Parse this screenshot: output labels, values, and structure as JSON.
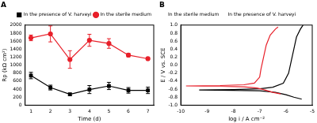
{
  "chart_data": [
    {
      "type": "line",
      "title": "A",
      "x_label": "Time (d)",
      "y_label": "Rp (kΩ cm²)",
      "xlim": [
        0.7,
        7.3
      ],
      "xticks": [
        1,
        2,
        3,
        4,
        5,
        6,
        7
      ],
      "ylim": [
        0,
        2000
      ],
      "yticks": [
        0,
        200,
        400,
        600,
        800,
        1000,
        1200,
        1400,
        1600,
        1800,
        2000
      ],
      "grid": false,
      "legend": "top-right",
      "series": [
        {
          "name": "In the presence of V. harveyi",
          "color": "#000000",
          "marker": "square",
          "line_style": "solid",
          "x": [
            1,
            2,
            3,
            4,
            5,
            6,
            7
          ],
          "values": [
            740,
            440,
            270,
            390,
            480,
            370,
            370
          ],
          "errors": [
            80,
            60,
            30,
            100,
            90,
            70,
            80
          ]
        },
        {
          "name": "In the sterile medium",
          "color": "#e8202a",
          "marker": "circle",
          "line_style": "solid",
          "x": [
            1,
            2,
            3,
            4,
            5,
            6,
            7
          ],
          "values": [
            1680,
            1780,
            1140,
            1620,
            1540,
            1250,
            1160
          ],
          "errors": [
            70,
            200,
            220,
            150,
            120,
            40,
            20
          ]
        }
      ]
    },
    {
      "type": "line",
      "title": "B",
      "x_label": "log i / A cm⁻²",
      "y_label": "E / V vs. SCE",
      "xlim": [
        -10,
        -5
      ],
      "xticks": [
        -10,
        -9,
        -8,
        -7,
        -6,
        -5
      ],
      "ylim": [
        -1,
        1
      ],
      "yticks": [
        {
          "value": -1,
          "label": "-1.0"
        },
        {
          "value": -0.8,
          "label": "-0.8"
        },
        {
          "value": -0.6,
          "label": "-0.6"
        },
        {
          "value": -0.4,
          "label": "-0.4"
        },
        {
          "value": -0.2,
          "label": "-0.2"
        },
        {
          "value": 0,
          "label": "0.0"
        },
        {
          "value": 0.2,
          "label": "0.2"
        },
        {
          "value": 0.4,
          "label": "0.4"
        },
        {
          "value": 0.6,
          "label": "0.6"
        },
        {
          "value": 0.8,
          "label": "0.8"
        },
        {
          "value": 1,
          "label": "1.0"
        }
      ],
      "grid": false,
      "legend": "top-left",
      "series": [
        {
          "name": "In the sterile medium",
          "color": "#e8202a",
          "marker": "none",
          "line_style": "solid",
          "x": [
            -6.2,
            -6.5,
            -6.8,
            -7.1,
            -7.6,
            -8.5,
            -9.8,
            -8.5,
            -7.6,
            -7.2,
            -7.0,
            -6.95,
            -6.85,
            -6.75,
            -6.6,
            -6.4,
            -6.3
          ],
          "values": [
            -0.72,
            -0.68,
            -0.62,
            -0.57,
            -0.54,
            -0.53,
            -0.52,
            -0.51,
            -0.49,
            -0.45,
            -0.3,
            -0.1,
            0.2,
            0.5,
            0.75,
            0.9,
            0.95
          ]
        },
        {
          "name": "In the presence of V. harveyi",
          "color": "#000000",
          "marker": "none",
          "line_style": "solid",
          "x": [
            -5.4,
            -5.7,
            -6.0,
            -6.4,
            -7.0,
            -8.0,
            -9.3,
            -8.0,
            -7.0,
            -6.5,
            -6.1,
            -5.9,
            -5.8,
            -5.7,
            -5.6,
            -5.45,
            -5.35
          ],
          "values": [
            -0.85,
            -0.8,
            -0.74,
            -0.68,
            -0.64,
            -0.63,
            -0.62,
            -0.61,
            -0.59,
            -0.55,
            -0.45,
            -0.2,
            0.1,
            0.4,
            0.7,
            0.9,
            1.0
          ]
        }
      ]
    }
  ]
}
